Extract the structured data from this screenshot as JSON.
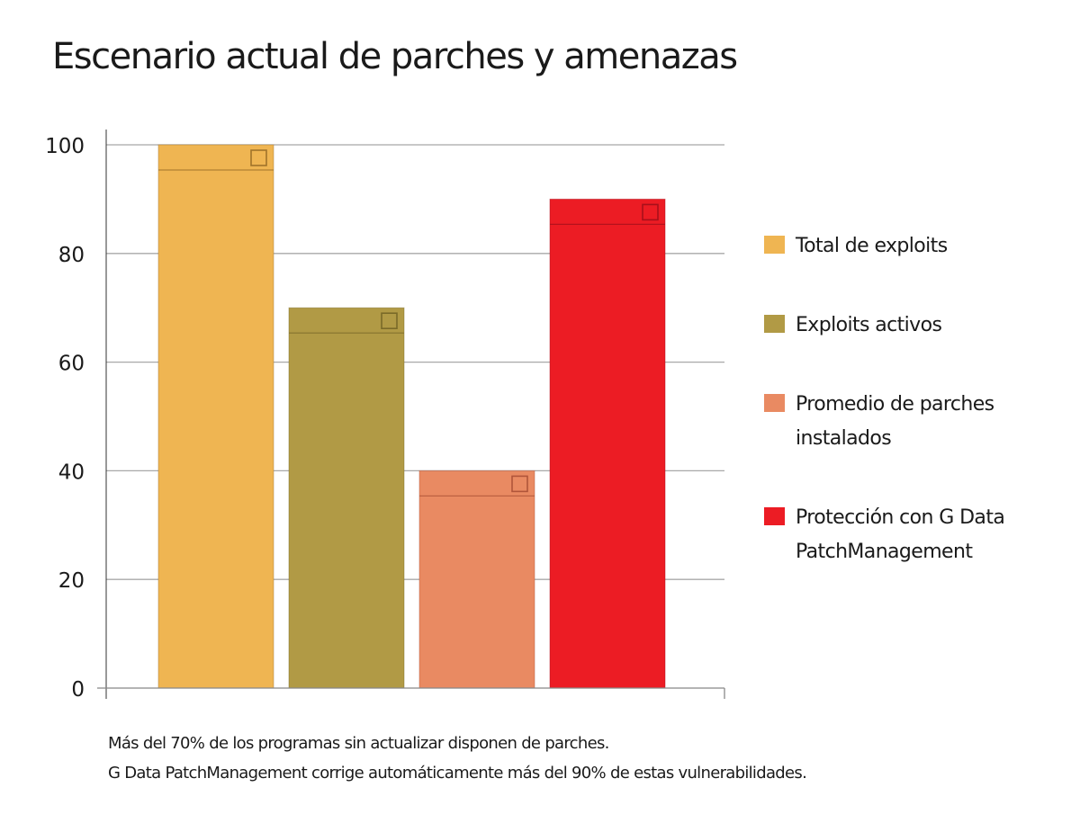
{
  "title": "Escenario actual de parches y amenazas",
  "chart_data": {
    "type": "bar",
    "title": "Escenario actual de parches y amenazas",
    "xlabel": "",
    "ylabel": "",
    "ylim": [
      0,
      100
    ],
    "yticks": [
      0,
      20,
      40,
      60,
      80,
      100
    ],
    "ytick_labels": [
      "0",
      "20",
      "40",
      "60",
      "80",
      "100"
    ],
    "grid": true,
    "legend_position": "right",
    "categories": [
      "Total de exploits",
      "Exploits activos",
      "Promedio de parches instalados",
      "Protección con G Data PatchManagement"
    ],
    "values": [
      100,
      70,
      40,
      90
    ],
    "colors": [
      "#efb552",
      "#b19a45",
      "#e98a62",
      "#ec1c24"
    ],
    "marker_colors": [
      "#a0742a",
      "#7a6a28",
      "#b0553a",
      "#a8101a"
    ]
  },
  "legend": [
    {
      "label_lines": [
        "Total de exploits"
      ],
      "color": "#efb552"
    },
    {
      "label_lines": [
        "Exploits activos"
      ],
      "color": "#b19a45"
    },
    {
      "label_lines": [
        "Promedio de parches",
        "instalados"
      ],
      "color": "#e98a62"
    },
    {
      "label_lines": [
        "Protección con G Data",
        "PatchManagement"
      ],
      "color": "#ec1c24"
    }
  ],
  "notes": [
    "Más del 70% de los programas sin actualizar disponen de parches.",
    "G Data PatchManagement corrige automáticamente más del 90% de estas vulnerabilidades."
  ]
}
